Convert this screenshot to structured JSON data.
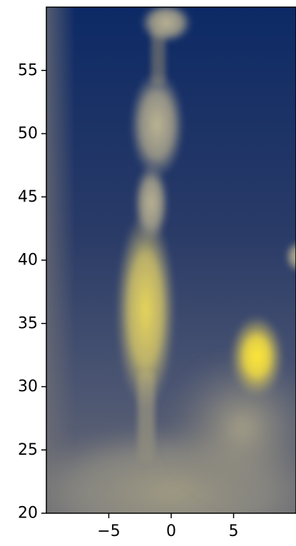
{
  "chart_data": {
    "type": "heatmap",
    "title": "",
    "xlabel": "",
    "ylabel": "",
    "colormap": "cividis",
    "colors": {
      "low": "#00224e",
      "mid": "#7c7b78",
      "high": "#fee838"
    },
    "xlim": [
      -10,
      10
    ],
    "ylim": [
      20,
      60
    ],
    "x_ticks": [
      -5,
      0,
      5
    ],
    "x_tick_labels": [
      "−5",
      "0",
      "5"
    ],
    "y_ticks": [
      20,
      25,
      30,
      35,
      40,
      45,
      50,
      55
    ],
    "y_tick_labels": [
      "20",
      "25",
      "30",
      "35",
      "40",
      "45",
      "50",
      "55"
    ],
    "grid": false,
    "features": [
      {
        "name": "lower-haze",
        "x": 0,
        "y": 22,
        "value": 0.5
      },
      {
        "name": "central-column-lower",
        "x": -2,
        "y": 36,
        "value": 0.75
      },
      {
        "name": "central-column-upper",
        "x": -1,
        "y": 51,
        "value": 0.55
      },
      {
        "name": "top-blob",
        "x": -0.5,
        "y": 58.5,
        "value": 0.55
      },
      {
        "name": "right-bright-spot",
        "x": 6.8,
        "y": 31.5,
        "value": 0.95
      },
      {
        "name": "right-edge-blob",
        "x": 10,
        "y": 40,
        "value": 0.5
      }
    ]
  }
}
